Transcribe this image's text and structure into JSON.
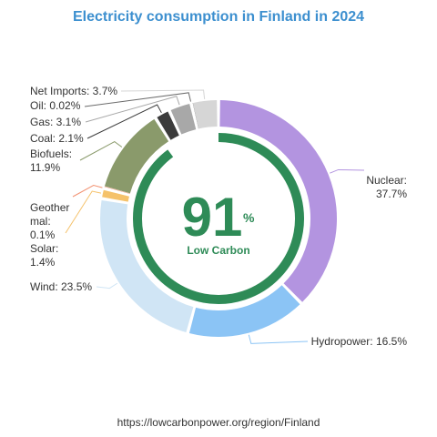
{
  "chart_data": {
    "type": "pie",
    "title": "Electricity consumption in Finland in 2024",
    "slices": [
      {
        "name": "Nuclear",
        "value": 37.7,
        "label_lines": [
          "Nuclear:",
          "37.7%"
        ],
        "color": "#b394e0"
      },
      {
        "name": "Hydropower",
        "value": 16.5,
        "label_lines": [
          "Hydropower: 16.5%"
        ],
        "color": "#8bc4f5"
      },
      {
        "name": "Wind",
        "value": 23.5,
        "label_lines": [
          "Wind: 23.5%"
        ],
        "color": "#d0e5f5"
      },
      {
        "name": "Solar",
        "value": 1.4,
        "label_lines": [
          "Solar:",
          "1.4%"
        ],
        "color": "#f5c26b"
      },
      {
        "name": "Geothermal",
        "value": 0.1,
        "label_lines": [
          "Geother",
          "mal:",
          "0.1%"
        ],
        "color": "#f29272"
      },
      {
        "name": "Biofuels",
        "value": 11.9,
        "label_lines": [
          "Biofuels:",
          "11.9%"
        ],
        "color": "#8a9a6b"
      },
      {
        "name": "Coal",
        "value": 2.1,
        "label_lines": [
          "Coal: 2.1%"
        ],
        "color": "#3b3b3b"
      },
      {
        "name": "Gas",
        "value": 3.1,
        "label_lines": [
          "Gas: 3.1%"
        ],
        "color": "#a8a8a8"
      },
      {
        "name": "Oil",
        "value": 0.02,
        "label_lines": [
          "Oil: 0.02%"
        ],
        "color": "#6b6b6b"
      },
      {
        "name": "Net Imports",
        "value": 3.7,
        "label_lines": [
          "Net Imports: 3.7%"
        ],
        "color": "#d6d6d6"
      }
    ],
    "center": {
      "value": "91",
      "unit": "%",
      "caption": "Low Carbon",
      "ring_fraction": 0.91,
      "color": "#2e8b57"
    },
    "source": "https://lowcarbonpower.org/region/Finland"
  }
}
